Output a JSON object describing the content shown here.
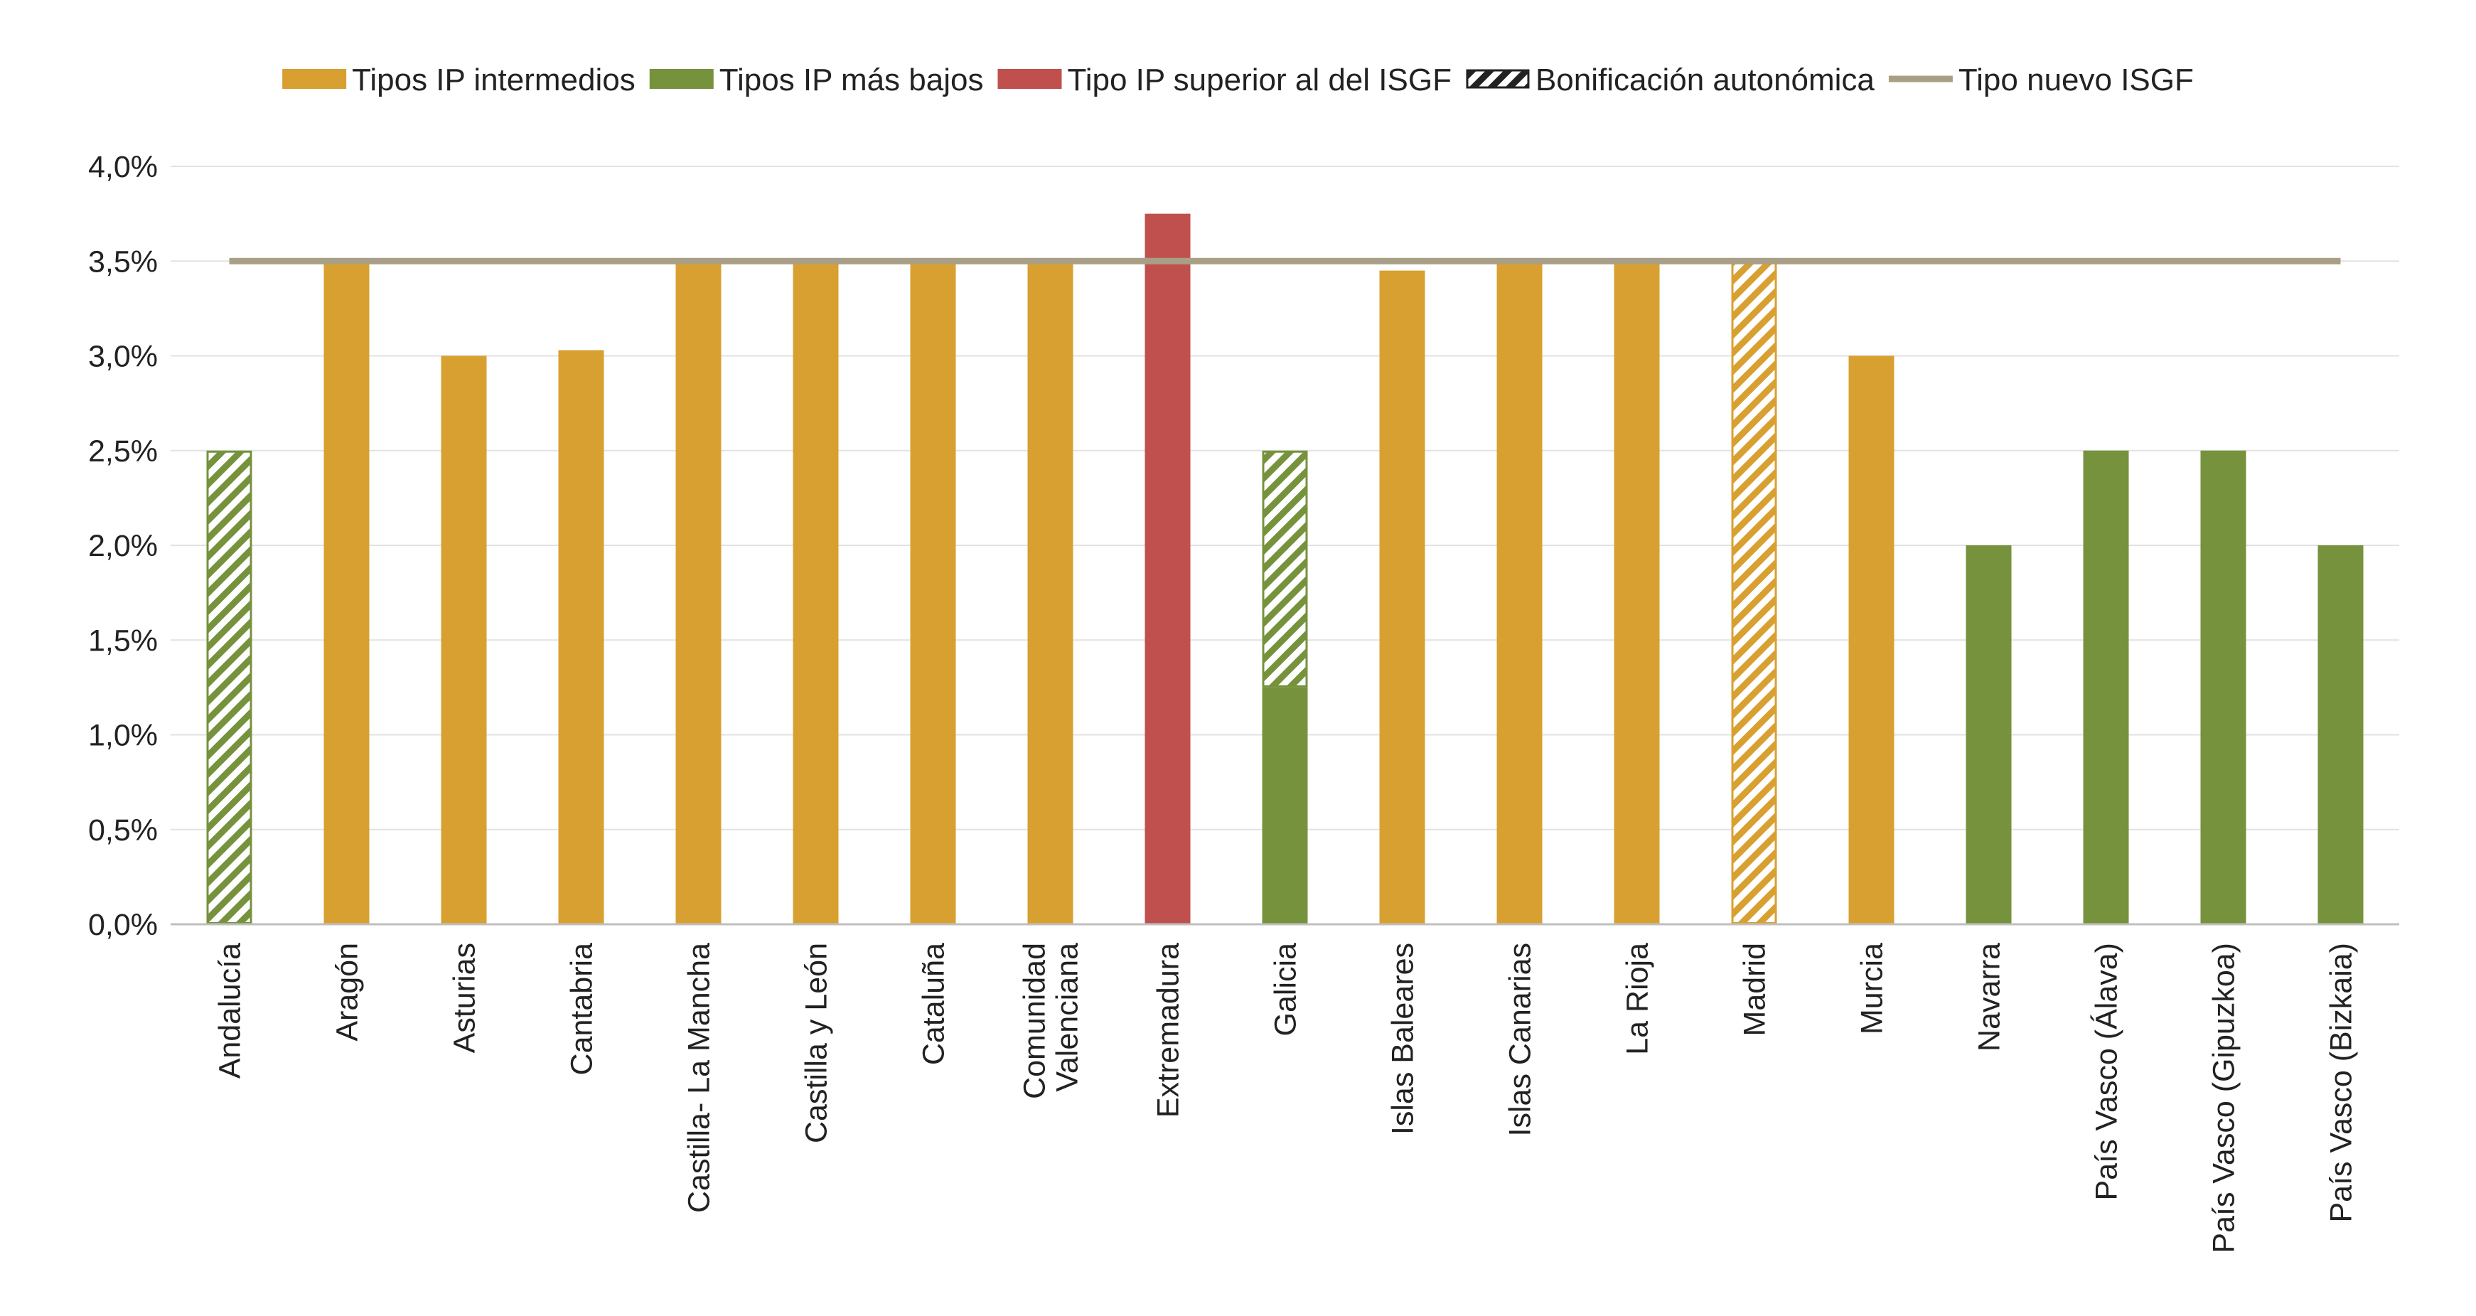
{
  "chart_data": {
    "type": "bar",
    "legend_position": "top",
    "grid": true,
    "ylim": [
      0,
      4.0
    ],
    "y_ticks": [
      "0,0%",
      "0,5%",
      "1,0%",
      "1,5%",
      "2,0%",
      "2,5%",
      "3,0%",
      "3,5%",
      "4,0%"
    ],
    "y_tick_values": [
      0,
      0.5,
      1.0,
      1.5,
      2.0,
      2.5,
      3.0,
      3.5,
      4.0
    ],
    "legend": [
      {
        "key": "intermedio",
        "label": "Tipos IP intermedios",
        "kind": "bar"
      },
      {
        "key": "bajo",
        "label": "Tipos IP más bajos",
        "kind": "bar"
      },
      {
        "key": "superior",
        "label": "Tipo IP superior al del ISGF",
        "kind": "bar"
      },
      {
        "key": "bonificacion",
        "label": "Bonificación autonómica",
        "kind": "hatch"
      },
      {
        "key": "isgf",
        "label": "Tipo nuevo ISGF",
        "kind": "line"
      }
    ],
    "colors": {
      "intermedio": "#D8A030",
      "bajo": "#76923C",
      "superior": "#C0504D",
      "bonificacion": "#222222",
      "isgf": "#A89F86",
      "grid": "#E2E2E2",
      "axis": "#BFBFBF"
    },
    "categories": [
      [
        "Andalucía"
      ],
      [
        "Aragón"
      ],
      [
        "Asturias"
      ],
      [
        "Cantabria"
      ],
      [
        "Castilla- La Mancha"
      ],
      [
        "Castilla y León"
      ],
      [
        "Cataluña"
      ],
      [
        "Comunidad",
        "Valenciana"
      ],
      [
        "Extremadura"
      ],
      [
        "Galicia"
      ],
      [
        "Islas Baleares"
      ],
      [
        "Islas Canarias"
      ],
      [
        "La Rioja"
      ],
      [
        "Madrid"
      ],
      [
        "Murcia"
      ],
      [
        "Navarra"
      ],
      [
        "País Vasco (Álava)"
      ],
      [
        "País Vasco (Gipuzkoa)"
      ],
      [
        "País Vasco (Bizkaia)"
      ]
    ],
    "series": [
      {
        "key": "intermedio",
        "values": [
          0,
          3.5,
          3.0,
          3.03,
          3.5,
          3.5,
          3.5,
          3.5,
          0,
          0,
          3.45,
          3.5,
          3.5,
          0,
          3.0,
          0,
          0,
          0,
          0
        ]
      },
      {
        "key": "bajo",
        "values": [
          0,
          0,
          0,
          0,
          0,
          0,
          0,
          0,
          0,
          1.25,
          0,
          0,
          0,
          0,
          0,
          2.0,
          2.5,
          2.5,
          2.0
        ]
      },
      {
        "key": "superior",
        "values": [
          0,
          0,
          0,
          0,
          0,
          0,
          0,
          0,
          3.75,
          0,
          0,
          0,
          0,
          0,
          0,
          0,
          0,
          0,
          0
        ]
      },
      {
        "key": "bonificacion",
        "values": [
          2.5,
          0,
          0,
          0,
          0,
          0,
          0,
          0,
          0,
          1.25,
          0,
          0,
          0,
          3.5,
          0,
          0,
          0,
          0,
          0
        ],
        "hatch_color_keys": [
          "bajo",
          "",
          "",
          "",
          "",
          "",
          "",
          "",
          "",
          "bajo",
          "",
          "",
          "",
          "intermedio",
          "",
          "",
          "",
          "",
          ""
        ]
      }
    ],
    "isgf_line": {
      "value": 3.5
    }
  }
}
